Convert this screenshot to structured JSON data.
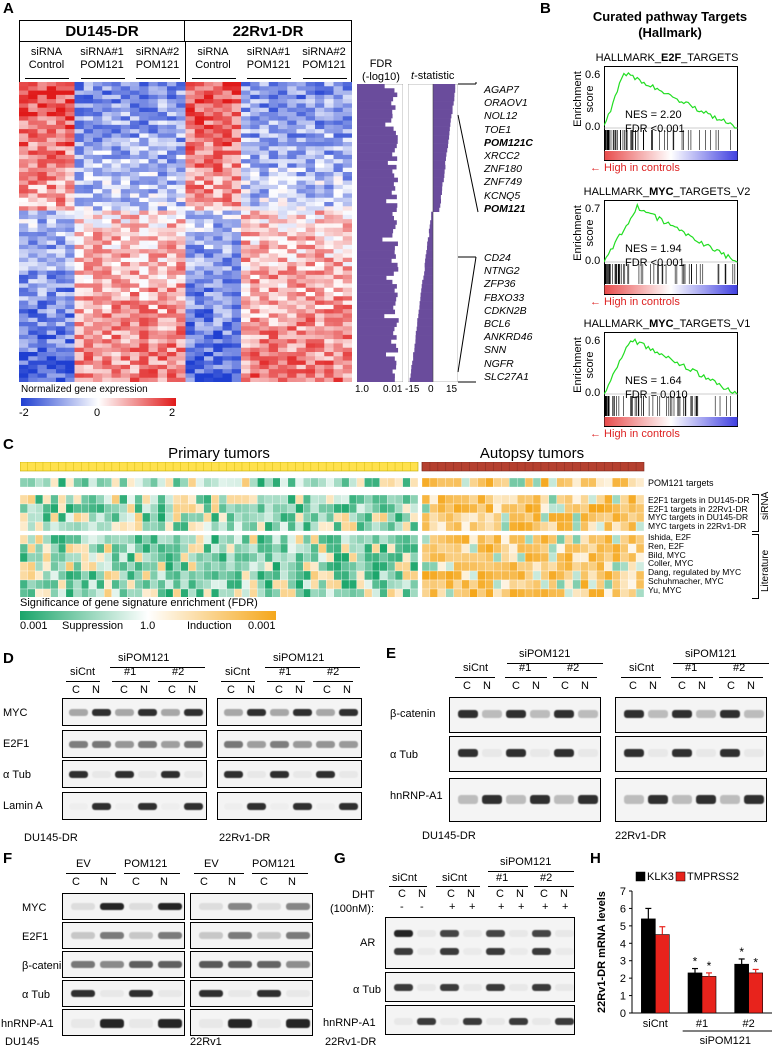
{
  "panelA": {
    "label": "A",
    "groups": [
      "DU145-DR",
      "22Rv1-DR"
    ],
    "subgroups": [
      [
        "siRNA",
        "Control"
      ],
      [
        "siRNA#1",
        "POM121"
      ],
      [
        "siRNA#2",
        "POM121"
      ],
      [
        "siRNA",
        "Control"
      ],
      [
        "siRNA#1",
        "POM121"
      ],
      [
        "siRNA#2",
        "POM121"
      ]
    ],
    "fdr_title": "FDR",
    "fdr_sub": "(-log10)",
    "t_title": "t",
    "t_sub": "-statistic",
    "fdr_ticks": [
      "1.0",
      "0.01"
    ],
    "t_ticks": [
      "-15",
      "0",
      "15"
    ],
    "genes_up": [
      "AGAP7",
      "ORAOV1",
      "NOL12",
      "TOE1",
      "POM121C",
      "XRCC2",
      "ZNF180",
      "ZNF749",
      "KCNQ5",
      "POM121"
    ],
    "genes_down": [
      "CD24",
      "NTNG2",
      "ZFP36",
      "FBXO33",
      "CDKN2B",
      "BCL6",
      "ANKRD46",
      "SNN",
      "NGFR",
      "SLC27A1"
    ],
    "bold_genes": [
      "POM121C",
      "POM121"
    ],
    "legend_title": "Normalized gene expression",
    "legend_ticks": [
      "-2",
      "0",
      "2"
    ],
    "colors": {
      "low": "#1f3fd1",
      "mid": "#ffffff",
      "high": "#e01a1a",
      "bar": "#6a4c9c"
    }
  },
  "panelB": {
    "label": "B",
    "title": "Curated pathway Targets",
    "subtitle": "(Hallmark)",
    "ylabel": "Enrichment score",
    "controls_label": "High in controls",
    "plots": [
      {
        "name_pre": "HALLMARK_",
        "name_bold": "E2F",
        "name_post": "_TARGETS",
        "nes": "NES = 2.20",
        "fdr": "FDR <0.001",
        "ymax": "0.6",
        "ymin": "0.0"
      },
      {
        "name_pre": "HALLMARK_",
        "name_bold": "MYC",
        "name_post": "_TARGETS_V2",
        "nes": "NES = 1.94",
        "fdr": "FDR <0.001",
        "ymax": "0.7",
        "ymin": "0.0"
      },
      {
        "name_pre": "HALLMARK_",
        "name_bold": "MYC",
        "name_post": "_TARGETS_V1",
        "nes": "NES = 1.64",
        "fdr": "FDR = 0.010",
        "ymax": "0.6",
        "ymin": "0.0"
      }
    ]
  },
  "panelC": {
    "label": "C",
    "primary": "Primary tumors",
    "autopsy": "Autopsy tumors",
    "rows_top": [
      "POM121 targets"
    ],
    "rows_sirna": [
      "E2F1 targets in DU145-DR",
      "E2F1 targets in 22Rv1-DR",
      "MYC targets in DU145-DR",
      "MYC targets in 22Rv1-DR"
    ],
    "rows_lit": [
      "Ishida, E2F",
      "Ren, E2F",
      "Bild, MYC",
      "Coller, MYC",
      "Dang, regulated by MYC",
      "Schuhmacher, MYC",
      "Yu, MYC"
    ],
    "side_sirna": "siRNA",
    "side_lit": "Literature",
    "legend_title": "Significance of gene signature enrichment (FDR)",
    "legend_labels": [
      "0.001",
      "Suppression",
      "1.0",
      "Induction",
      "0.001"
    ]
  },
  "panelD": {
    "label": "D",
    "sicnt": "siCnt",
    "sipom": "siPOM121",
    "n1": "#1",
    "n2": "#2",
    "c": "C",
    "n": "N",
    "rows": [
      "MYC",
      "E2F1",
      "α Tub",
      "Lamin A"
    ],
    "cells": [
      "DU145-DR",
      "22Rv1-DR"
    ]
  },
  "panelE": {
    "label": "E",
    "sicnt": "siCnt",
    "sipom": "siPOM121",
    "n1": "#1",
    "n2": "#2",
    "c": "C",
    "n": "N",
    "rows": [
      "β-catenin",
      "α Tub",
      "hnRNP-A1"
    ],
    "cells": [
      "DU145-DR",
      "22Rv1-DR"
    ]
  },
  "panelF": {
    "label": "F",
    "ev": "EV",
    "pom": "POM121",
    "c": "C",
    "n": "N",
    "rows": [
      "MYC",
      "E2F1",
      "β-catenin",
      "α Tub",
      "hnRNP-A1"
    ],
    "cells": [
      "DU145",
      "22Rv1"
    ]
  },
  "panelG": {
    "label": "G",
    "sicnt": "siCnt",
    "sipom": "siPOM121",
    "n1": "#1",
    "n2": "#2",
    "c": "C",
    "n": "N",
    "dht": "DHT",
    "dht_conc": "(100nM):",
    "minus": "-",
    "plus": "+",
    "rows": [
      "AR",
      "α Tub",
      "hnRNP-A1"
    ],
    "cell": "22Rv1-DR"
  },
  "panelH": {
    "label": "H",
    "chart_data": {
      "type": "bar",
      "categories": [
        "siCnt",
        "#1",
        "#2"
      ],
      "group_label": "siPOM121",
      "ylabel": "22Rv1-DR mRNA levels",
      "ylim": [
        0,
        7
      ],
      "yticks": [
        "0",
        "1",
        "2",
        "3",
        "4",
        "5",
        "6",
        "7"
      ],
      "series": [
        {
          "name": "KLK3",
          "color": "#000000",
          "values": [
            5.4,
            2.3,
            2.8
          ],
          "errors": [
            0.6,
            0.25,
            0.3
          ]
        },
        {
          "name": "TMPRSS2",
          "color": "#e8231c",
          "values": [
            4.5,
            2.1,
            2.3
          ],
          "errors": [
            0.45,
            0.2,
            0.2
          ]
        }
      ],
      "significance": [
        "",
        "*",
        "*"
      ]
    }
  }
}
